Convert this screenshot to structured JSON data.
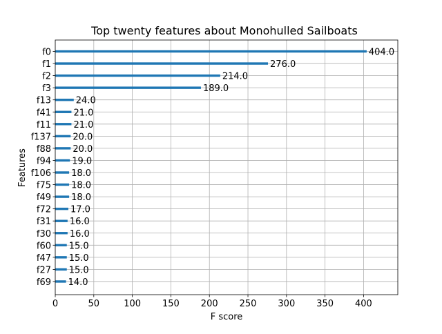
{
  "chart_data": {
    "type": "bar",
    "orientation": "horizontal",
    "title": "Top twenty features about Monohulled Sailboats",
    "xlabel": "F score",
    "ylabel": "Features",
    "categories": [
      "f0",
      "f1",
      "f2",
      "f3",
      "f13",
      "f41",
      "f11",
      "f137",
      "f88",
      "f94",
      "f106",
      "f75",
      "f49",
      "f72",
      "f31",
      "f30",
      "f60",
      "f47",
      "f27",
      "f69"
    ],
    "values": [
      404.0,
      276.0,
      214.0,
      189.0,
      24.0,
      21.0,
      21.0,
      20.0,
      20.0,
      19.0,
      18.0,
      18.0,
      18.0,
      17.0,
      16.0,
      16.0,
      15.0,
      15.0,
      15.0,
      14.0
    ],
    "value_labels": [
      "404.0",
      "276.0",
      "214.0",
      "189.0",
      "24.0",
      "21.0",
      "21.0",
      "20.0",
      "20.0",
      "19.0",
      "18.0",
      "18.0",
      "18.0",
      "17.0",
      "16.0",
      "16.0",
      "15.0",
      "15.0",
      "15.0",
      "14.0"
    ],
    "xlim": [
      0,
      444.4
    ],
    "xticks": [
      0,
      50,
      100,
      150,
      200,
      250,
      300,
      350,
      400
    ],
    "xtick_labels": [
      "0",
      "50",
      "100",
      "150",
      "200",
      "250",
      "300",
      "350",
      "400"
    ],
    "grid": true,
    "bar_color": "#1f77b4"
  }
}
